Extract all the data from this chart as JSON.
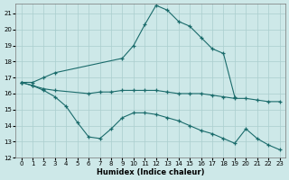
{
  "xlabel": "Humidex (Indice chaleur)",
  "background_color": "#cde8e8",
  "grid_color": "#aacece",
  "line_color": "#1a6b6b",
  "xlim": [
    -0.5,
    23.5
  ],
  "ylim": [
    12,
    21.6
  ],
  "yticks": [
    12,
    13,
    14,
    15,
    16,
    17,
    18,
    19,
    20,
    21
  ],
  "xticks": [
    0,
    1,
    2,
    3,
    4,
    5,
    6,
    7,
    8,
    9,
    10,
    11,
    12,
    13,
    14,
    15,
    16,
    17,
    18,
    19,
    20,
    21,
    22,
    23
  ],
  "line_upper_x": [
    0,
    1,
    2,
    3,
    9,
    10,
    11,
    12,
    13,
    14,
    15,
    16,
    17,
    18,
    19
  ],
  "line_upper_y": [
    16.7,
    16.7,
    17.0,
    17.3,
    18.2,
    19.0,
    20.3,
    21.5,
    21.2,
    20.5,
    20.2,
    19.5,
    18.8,
    18.5,
    15.8
  ],
  "line_mid_x": [
    0,
    1,
    2,
    3,
    6,
    7,
    8,
    9,
    10,
    11,
    12,
    13,
    14,
    15,
    16,
    17,
    18,
    19,
    20,
    21,
    22,
    23
  ],
  "line_mid_y": [
    16.7,
    16.5,
    16.3,
    16.2,
    16.0,
    16.1,
    16.1,
    16.2,
    16.2,
    16.2,
    16.2,
    16.1,
    16.0,
    16.0,
    16.0,
    15.9,
    15.8,
    15.7,
    15.7,
    15.6,
    15.5,
    15.5
  ],
  "line_lower_x": [
    0,
    1,
    2,
    3,
    4,
    5,
    6,
    7,
    8,
    9,
    10,
    11,
    12,
    13,
    14,
    15,
    16,
    17,
    18,
    19,
    20,
    21,
    22,
    23
  ],
  "line_lower_y": [
    16.7,
    16.5,
    16.2,
    15.8,
    15.2,
    14.2,
    13.3,
    13.2,
    13.8,
    14.5,
    14.8,
    14.8,
    14.7,
    14.5,
    14.3,
    14.0,
    13.7,
    13.5,
    13.2,
    12.9,
    13.8,
    13.2,
    12.8,
    12.5
  ]
}
